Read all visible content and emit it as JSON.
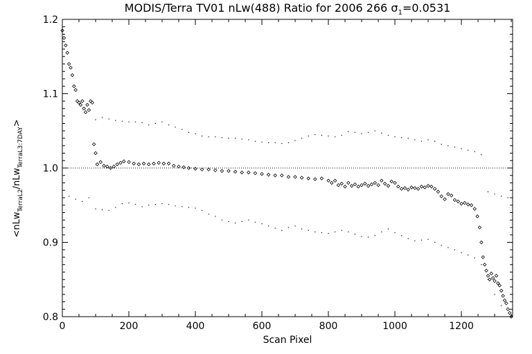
{
  "chart_data": {
    "type": "scatter",
    "title_main": "MODIS/Terra TV01 nLw(488) Ratio for 2006 266 ",
    "title_sigma": "σ",
    "title_sigma_sub": "1",
    "title_sigma_value": "=0.0531",
    "xlabel": "Scan Pixel",
    "ylabel_parts": {
      "open": "<",
      "num": "nLw",
      "num_sub": "TerraL2",
      "sep": "/",
      "den": "nLw",
      "den_sub": "TerraL3:7DAY",
      "close": ">"
    },
    "xlim": [
      0,
      1354
    ],
    "ylim": [
      0.8,
      1.2
    ],
    "xticks": [
      0,
      200,
      400,
      600,
      800,
      1000,
      1200
    ],
    "xtick_labels": [
      "0",
      "200",
      "400",
      "600",
      "800",
      "1000",
      "1200"
    ],
    "yticks": [
      0.8,
      0.9,
      1.0,
      1.1,
      1.2
    ],
    "ytick_labels": [
      "0.8",
      "0.9",
      "1.0",
      "1.1",
      "1.2"
    ],
    "reference_line": 1.0,
    "series": [
      {
        "marker": "diamond",
        "points": [
          [
            0,
            1.185
          ],
          [
            5,
            1.175
          ],
          [
            10,
            1.165
          ],
          [
            15,
            1.155
          ],
          [
            20,
            1.14
          ],
          [
            25,
            1.135
          ],
          [
            30,
            1.125
          ],
          [
            35,
            1.11
          ],
          [
            40,
            1.105
          ],
          [
            45,
            1.09
          ],
          [
            50,
            1.088
          ],
          [
            55,
            1.085
          ],
          [
            60,
            1.09
          ],
          [
            65,
            1.08
          ],
          [
            70,
            1.075
          ],
          [
            75,
            1.085
          ],
          [
            80,
            1.078
          ],
          [
            85,
            1.09
          ],
          [
            90,
            1.088
          ],
          [
            95,
            1.032
          ],
          [
            100,
            1.02
          ],
          [
            105,
            1.005
          ],
          [
            115,
            1.008
          ],
          [
            125,
            1.003
          ],
          [
            135,
            1.002
          ],
          [
            145,
            1.0
          ],
          [
            155,
            1.002
          ],
          [
            165,
            1.005
          ],
          [
            175,
            1.007
          ],
          [
            185,
            1.009
          ],
          [
            200,
            1.008
          ],
          [
            215,
            1.006
          ],
          [
            230,
            1.005
          ],
          [
            245,
            1.006
          ],
          [
            260,
            1.005
          ],
          [
            275,
            1.006
          ],
          [
            290,
            1.007
          ],
          [
            305,
            1.006
          ],
          [
            320,
            1.006
          ],
          [
            335,
            1.003
          ],
          [
            350,
            1.002
          ],
          [
            365,
            1.001
          ],
          [
            380,
            1.0
          ],
          [
            400,
            0.999
          ],
          [
            420,
            0.998
          ],
          [
            440,
            0.998
          ],
          [
            460,
            0.997
          ],
          [
            480,
            0.996
          ],
          [
            500,
            0.996
          ],
          [
            520,
            0.995
          ],
          [
            540,
            0.994
          ],
          [
            560,
            0.994
          ],
          [
            580,
            0.993
          ],
          [
            600,
            0.992
          ],
          [
            620,
            0.991
          ],
          [
            640,
            0.99
          ],
          [
            660,
            0.99
          ],
          [
            680,
            0.988
          ],
          [
            700,
            0.988
          ],
          [
            720,
            0.987
          ],
          [
            740,
            0.986
          ],
          [
            760,
            0.985
          ],
          [
            780,
            0.986
          ],
          [
            800,
            0.983
          ],
          [
            810,
            0.98
          ],
          [
            820,
            0.983
          ],
          [
            830,
            0.977
          ],
          [
            840,
            0.979
          ],
          [
            850,
            0.975
          ],
          [
            860,
            0.98
          ],
          [
            870,
            0.976
          ],
          [
            880,
            0.978
          ],
          [
            890,
            0.975
          ],
          [
            900,
            0.977
          ],
          [
            910,
            0.979
          ],
          [
            920,
            0.976
          ],
          [
            930,
            0.978
          ],
          [
            940,
            0.98
          ],
          [
            950,
            0.977
          ],
          [
            960,
            0.983
          ],
          [
            970,
            0.979
          ],
          [
            980,
            0.976
          ],
          [
            990,
            0.982
          ],
          [
            1000,
            0.98
          ],
          [
            1010,
            0.975
          ],
          [
            1020,
            0.972
          ],
          [
            1030,
            0.973
          ],
          [
            1040,
            0.971
          ],
          [
            1050,
            0.974
          ],
          [
            1060,
            0.973
          ],
          [
            1070,
            0.972
          ],
          [
            1080,
            0.975
          ],
          [
            1090,
            0.974
          ],
          [
            1100,
            0.976
          ],
          [
            1110,
            0.975
          ],
          [
            1120,
            0.972
          ],
          [
            1130,
            0.968
          ],
          [
            1140,
            0.962
          ],
          [
            1150,
            0.958
          ],
          [
            1160,
            0.965
          ],
          [
            1170,
            0.963
          ],
          [
            1180,
            0.957
          ],
          [
            1190,
            0.955
          ],
          [
            1200,
            0.952
          ],
          [
            1210,
            0.953
          ],
          [
            1220,
            0.951
          ],
          [
            1230,
            0.95
          ],
          [
            1240,
            0.945
          ],
          [
            1248,
            0.935
          ],
          [
            1255,
            0.92
          ],
          [
            1260,
            0.9
          ],
          [
            1265,
            0.88
          ],
          [
            1270,
            0.87
          ],
          [
            1275,
            0.862
          ],
          [
            1280,
            0.855
          ],
          [
            1285,
            0.85
          ],
          [
            1290,
            0.858
          ],
          [
            1295,
            0.852
          ],
          [
            1300,
            0.848
          ],
          [
            1305,
            0.855
          ],
          [
            1310,
            0.845
          ],
          [
            1315,
            0.842
          ],
          [
            1320,
            0.835
          ],
          [
            1325,
            0.828
          ],
          [
            1330,
            0.822
          ],
          [
            1335,
            0.818
          ],
          [
            1340,
            0.81
          ],
          [
            1345,
            0.805
          ],
          [
            1350,
            0.8
          ]
        ]
      },
      {
        "marker": "dot",
        "name_role": "upper-envelope",
        "points": [
          [
            100,
            1.065
          ],
          [
            120,
            1.068
          ],
          [
            140,
            1.066
          ],
          [
            160,
            1.064
          ],
          [
            180,
            1.063
          ],
          [
            200,
            1.062
          ],
          [
            220,
            1.062
          ],
          [
            240,
            1.061
          ],
          [
            260,
            1.058
          ],
          [
            280,
            1.06
          ],
          [
            300,
            1.062
          ],
          [
            320,
            1.058
          ],
          [
            340,
            1.055
          ],
          [
            360,
            1.052
          ],
          [
            380,
            1.048
          ],
          [
            400,
            1.046
          ],
          [
            420,
            1.043
          ],
          [
            440,
            1.042
          ],
          [
            460,
            1.042
          ],
          [
            480,
            1.041
          ],
          [
            500,
            1.04
          ],
          [
            520,
            1.04
          ],
          [
            540,
            1.039
          ],
          [
            560,
            1.038
          ],
          [
            580,
            1.036
          ],
          [
            600,
            1.035
          ],
          [
            620,
            1.034
          ],
          [
            640,
            1.034
          ],
          [
            660,
            1.033
          ],
          [
            680,
            1.034
          ],
          [
            700,
            1.037
          ],
          [
            720,
            1.04
          ],
          [
            740,
            1.043
          ],
          [
            760,
            1.045
          ],
          [
            780,
            1.044
          ],
          [
            800,
            1.043
          ],
          [
            820,
            1.042
          ],
          [
            840,
            1.044
          ],
          [
            860,
            1.049
          ],
          [
            880,
            1.048
          ],
          [
            900,
            1.046
          ],
          [
            920,
            1.048
          ],
          [
            940,
            1.05
          ],
          [
            960,
            1.047
          ],
          [
            980,
            1.044
          ],
          [
            1000,
            1.042
          ],
          [
            1020,
            1.041
          ],
          [
            1040,
            1.04
          ],
          [
            1060,
            1.038
          ],
          [
            1080,
            1.036
          ],
          [
            1100,
            1.038
          ],
          [
            1120,
            1.036
          ],
          [
            1140,
            1.032
          ],
          [
            1160,
            1.03
          ],
          [
            1180,
            1.028
          ],
          [
            1200,
            1.026
          ],
          [
            1220,
            1.024
          ],
          [
            1240,
            1.022
          ],
          [
            1260,
            1.018
          ],
          [
            1280,
            0.968
          ],
          [
            1300,
            0.965
          ],
          [
            1320,
            0.962
          ],
          [
            1340,
            0.96
          ]
        ]
      },
      {
        "marker": "dot",
        "name_role": "lower-envelope",
        "points": [
          [
            20,
            0.962
          ],
          [
            40,
            0.958
          ],
          [
            60,
            0.955
          ],
          [
            80,
            0.96
          ],
          [
            100,
            0.945
          ],
          [
            120,
            0.944
          ],
          [
            140,
            0.943
          ],
          [
            160,
            0.947
          ],
          [
            180,
            0.952
          ],
          [
            200,
            0.953
          ],
          [
            220,
            0.951
          ],
          [
            240,
            0.948
          ],
          [
            260,
            0.95
          ],
          [
            280,
            0.951
          ],
          [
            300,
            0.952
          ],
          [
            320,
            0.951
          ],
          [
            340,
            0.949
          ],
          [
            360,
            0.948
          ],
          [
            380,
            0.947
          ],
          [
            400,
            0.946
          ],
          [
            420,
            0.943
          ],
          [
            440,
            0.938
          ],
          [
            460,
            0.935
          ],
          [
            480,
            0.93
          ],
          [
            500,
            0.928
          ],
          [
            520,
            0.926
          ],
          [
            540,
            0.928
          ],
          [
            560,
            0.93
          ],
          [
            580,
            0.927
          ],
          [
            600,
            0.925
          ],
          [
            620,
            0.922
          ],
          [
            640,
            0.919
          ],
          [
            660,
            0.916
          ],
          [
            680,
            0.92
          ],
          [
            700,
            0.922
          ],
          [
            720,
            0.918
          ],
          [
            740,
            0.916
          ],
          [
            760,
            0.914
          ],
          [
            780,
            0.913
          ],
          [
            800,
            0.912
          ],
          [
            820,
            0.914
          ],
          [
            840,
            0.916
          ],
          [
            860,
            0.914
          ],
          [
            880,
            0.911
          ],
          [
            900,
            0.908
          ],
          [
            920,
            0.907
          ],
          [
            940,
            0.909
          ],
          [
            960,
            0.914
          ],
          [
            980,
            0.918
          ],
          [
            1000,
            0.913
          ],
          [
            1020,
            0.909
          ],
          [
            1040,
            0.905
          ],
          [
            1060,
            0.902
          ],
          [
            1080,
            0.903
          ],
          [
            1100,
            0.904
          ],
          [
            1120,
            0.9
          ],
          [
            1140,
            0.896
          ],
          [
            1160,
            0.893
          ],
          [
            1180,
            0.89
          ],
          [
            1200,
            0.886
          ],
          [
            1220,
            0.883
          ],
          [
            1240,
            0.879
          ],
          [
            1260,
            0.87
          ],
          [
            1280,
            0.85
          ],
          [
            1300,
            0.83
          ],
          [
            1320,
            0.815
          ]
        ]
      }
    ]
  }
}
